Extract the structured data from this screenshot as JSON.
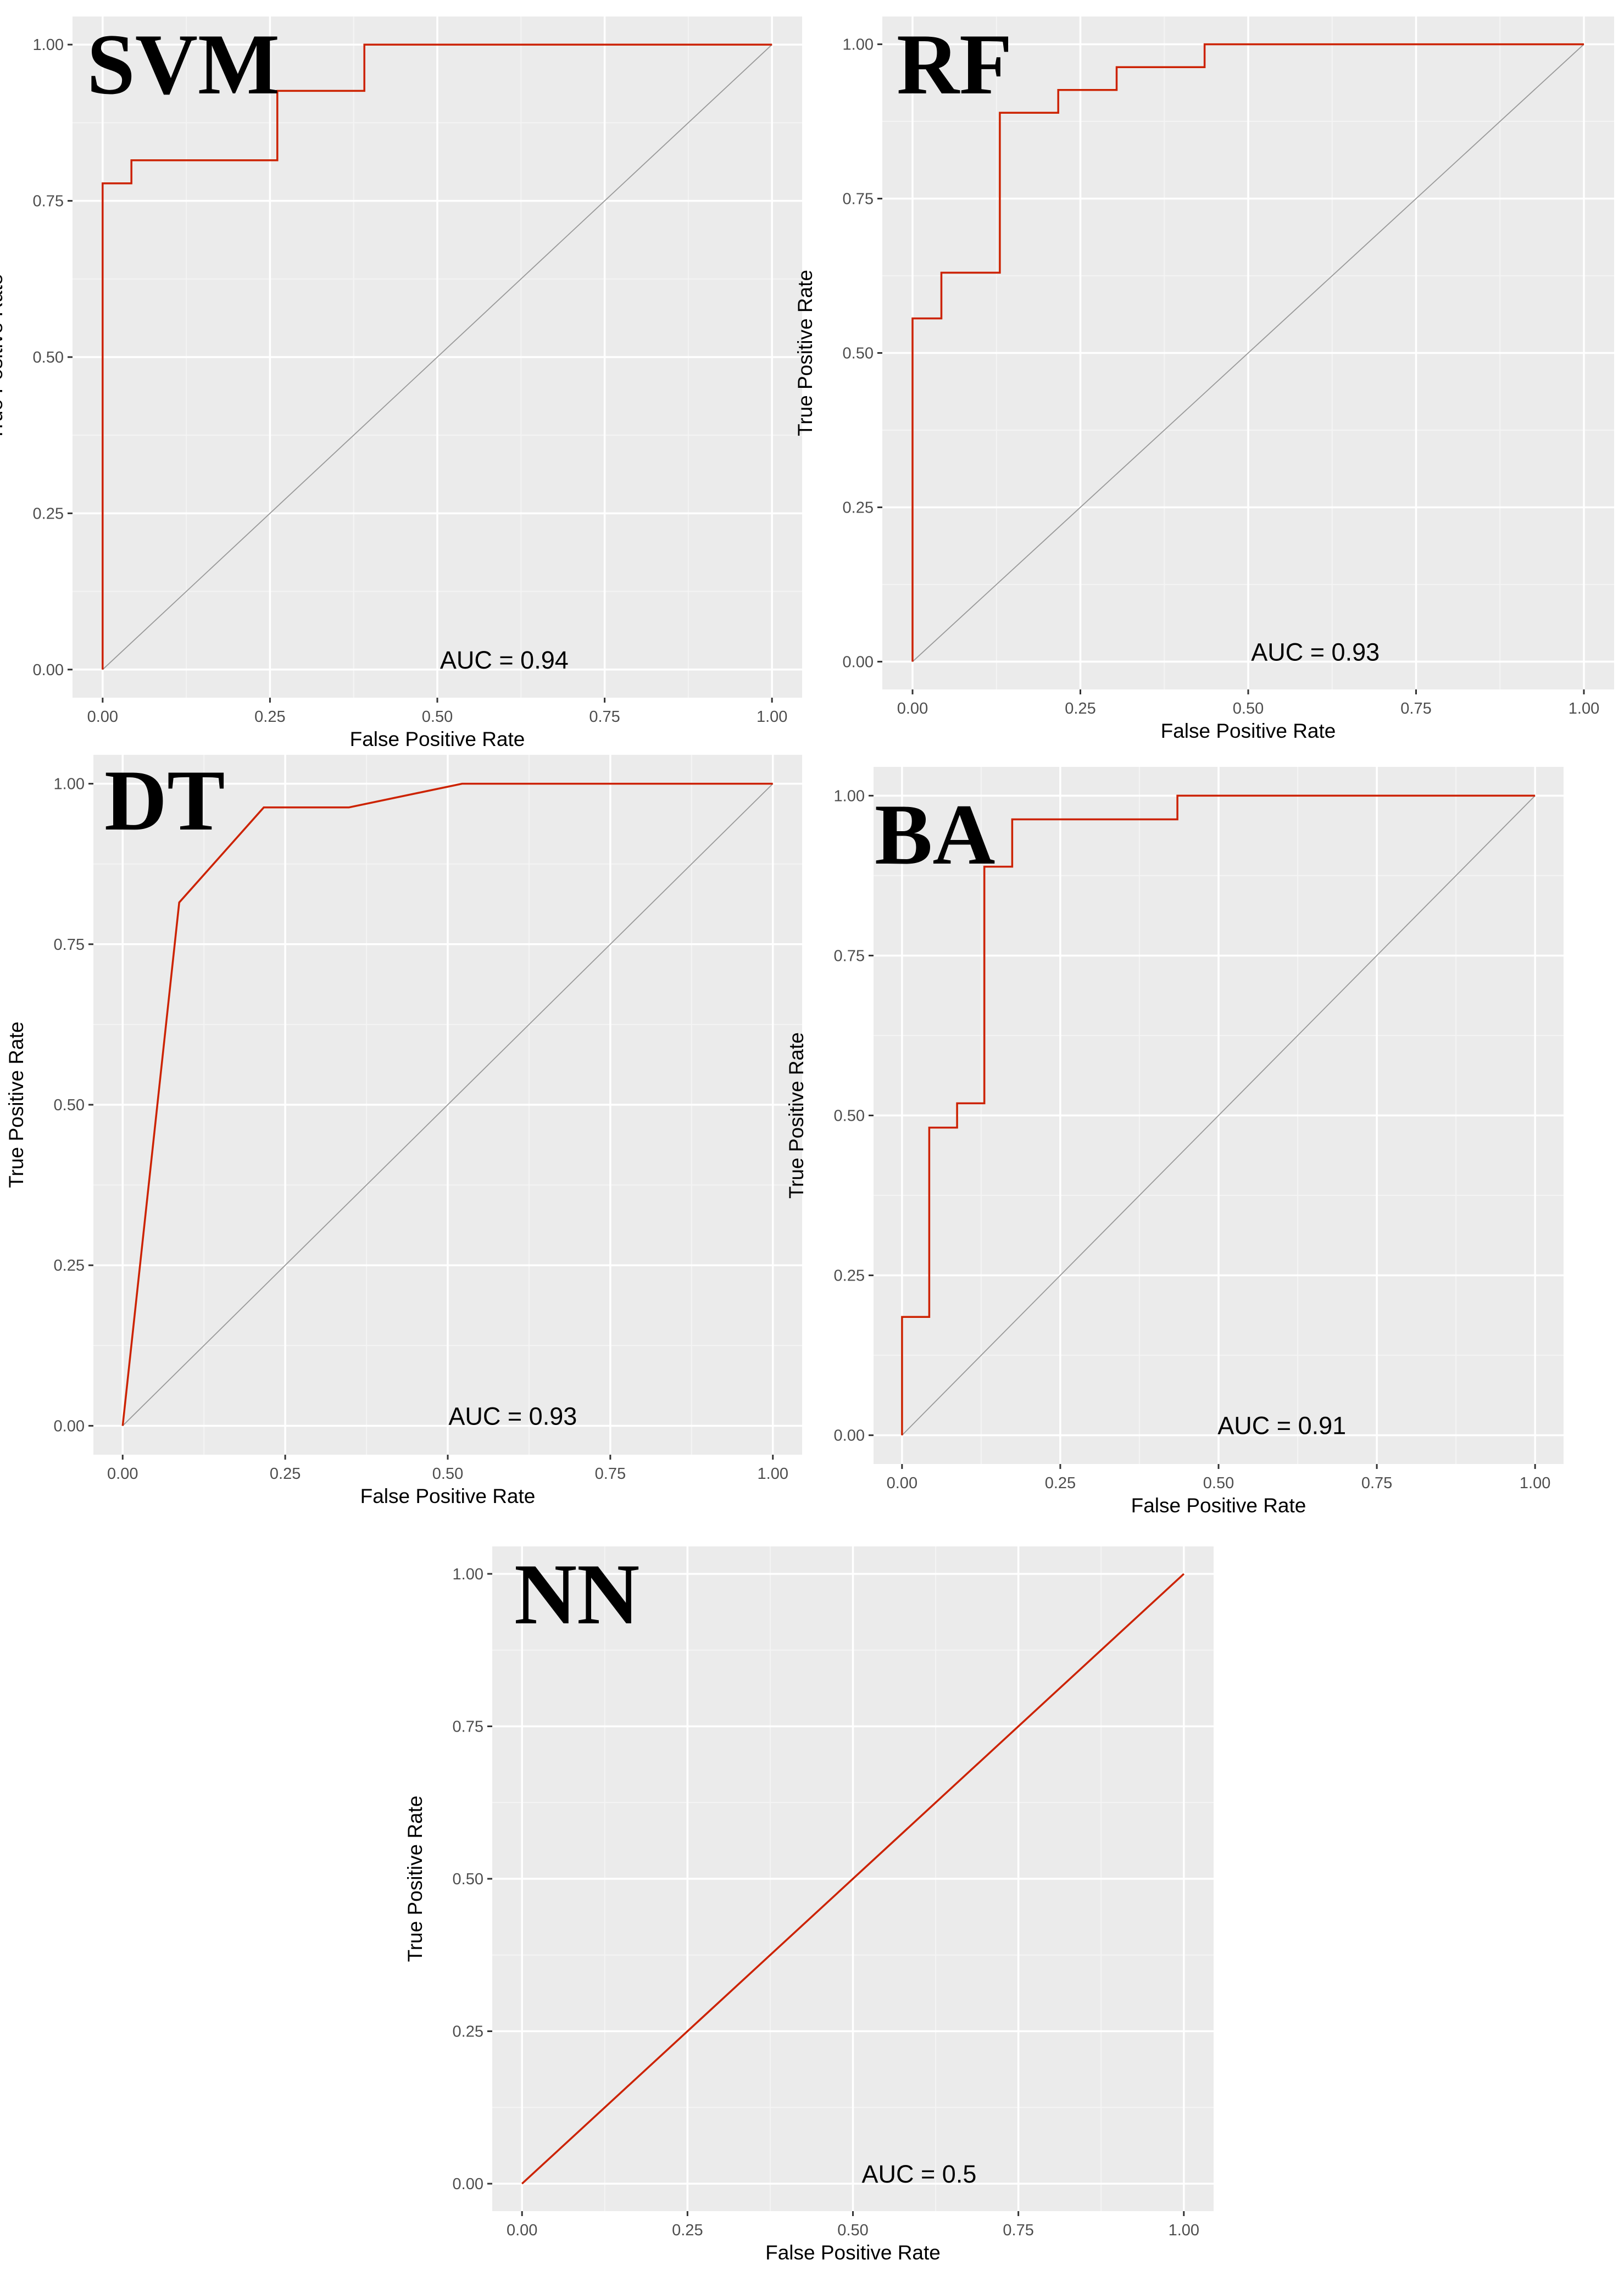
{
  "figure": {
    "background": "#ffffff"
  },
  "style": {
    "panel_bg": "#ebebeb",
    "grid_major": "#ffffff",
    "grid_minor": "#f4f4f4",
    "roc_color": "#cc2200",
    "diagonal_color": "#999999",
    "tick_color": "#333333"
  },
  "chart_data": [
    {
      "id": "svm",
      "type": "line",
      "panel_label": "SVM",
      "xlabel": "False Positive Rate",
      "ylabel": "True Positive Rate",
      "xlim": [
        0,
        1
      ],
      "ylim": [
        0,
        1
      ],
      "grid": true,
      "x_ticks": [
        "0.00",
        "0.25",
        "0.50",
        "0.75",
        "1.00"
      ],
      "y_ticks": [
        "0.00",
        "0.25",
        "0.50",
        "0.75",
        "1.00"
      ],
      "annotation": "AUC = 0.94",
      "auc": 0.94,
      "roc_curve": {
        "x": [
          0,
          0,
          0.043,
          0.043,
          0.261,
          0.261,
          0.391,
          0.391,
          1.0
        ],
        "y": [
          0,
          0.778,
          0.778,
          0.815,
          0.815,
          0.926,
          0.926,
          1.0,
          1.0
        ]
      },
      "diagonal": {
        "x": [
          0,
          1
        ],
        "y": [
          0,
          1
        ]
      }
    },
    {
      "id": "rf",
      "type": "line",
      "panel_label": "RF",
      "xlabel": "False Positive Rate",
      "ylabel": "True Positive Rate",
      "xlim": [
        0,
        1
      ],
      "ylim": [
        0,
        1
      ],
      "grid": true,
      "x_ticks": [
        "0.00",
        "0.25",
        "0.50",
        "0.75",
        "1.00"
      ],
      "y_ticks": [
        "0.00",
        "0.25",
        "0.50",
        "0.75",
        "1.00"
      ],
      "annotation": "AUC = 0.93",
      "auc": 0.93,
      "roc_curve": {
        "x": [
          0,
          0,
          0.043,
          0.043,
          0.13,
          0.13,
          0.217,
          0.217,
          0.304,
          0.304,
          0.435,
          0.435,
          1.0
        ],
        "y": [
          0,
          0.556,
          0.556,
          0.63,
          0.63,
          0.889,
          0.889,
          0.926,
          0.926,
          0.963,
          0.963,
          1.0,
          1.0
        ]
      },
      "diagonal": {
        "x": [
          0,
          1
        ],
        "y": [
          0,
          1
        ]
      }
    },
    {
      "id": "dt",
      "type": "line",
      "panel_label": "DT",
      "xlabel": "False Positive Rate",
      "ylabel": "True Positive Rate",
      "xlim": [
        0,
        1
      ],
      "ylim": [
        0,
        1
      ],
      "grid": true,
      "x_ticks": [
        "0.00",
        "0.25",
        "0.50",
        "0.75",
        "1.00"
      ],
      "y_ticks": [
        "0.00",
        "0.25",
        "0.50",
        "0.75",
        "1.00"
      ],
      "annotation": "AUC = 0.93",
      "auc": 0.93,
      "roc_curve": {
        "x": [
          0,
          0.087,
          0.217,
          0.348,
          0.522,
          1.0
        ],
        "y": [
          0,
          0.815,
          0.963,
          0.963,
          1.0,
          1.0
        ]
      },
      "diagonal": {
        "x": [
          0,
          1
        ],
        "y": [
          0,
          1
        ]
      }
    },
    {
      "id": "ba",
      "type": "line",
      "panel_label": "BA",
      "xlabel": "False Positive Rate",
      "ylabel": "True Positive Rate",
      "xlim": [
        0,
        1
      ],
      "ylim": [
        0,
        1
      ],
      "grid": true,
      "x_ticks": [
        "0.00",
        "0.25",
        "0.50",
        "0.75",
        "1.00"
      ],
      "y_ticks": [
        "0.00",
        "0.25",
        "0.50",
        "0.75",
        "1.00"
      ],
      "annotation": "AUC = 0.91",
      "auc": 0.91,
      "roc_curve": {
        "x": [
          0,
          0,
          0.043,
          0.043,
          0.087,
          0.087,
          0.13,
          0.13,
          0.174,
          0.174,
          0.435,
          0.435,
          1.0
        ],
        "y": [
          0,
          0.185,
          0.185,
          0.481,
          0.481,
          0.519,
          0.519,
          0.889,
          0.889,
          0.963,
          0.963,
          1.0,
          1.0
        ]
      },
      "diagonal": {
        "x": [
          0,
          1
        ],
        "y": [
          0,
          1
        ]
      }
    },
    {
      "id": "nn",
      "type": "line",
      "panel_label": "NN",
      "xlabel": "False Positive Rate",
      "ylabel": "True Positive Rate",
      "xlim": [
        0,
        1
      ],
      "ylim": [
        0,
        1
      ],
      "grid": true,
      "x_ticks": [
        "0.00",
        "0.25",
        "0.50",
        "0.75",
        "1.00"
      ],
      "y_ticks": [
        "0.00",
        "0.25",
        "0.50",
        "0.75",
        "1.00"
      ],
      "annotation": "AUC = 0.5",
      "auc": 0.5,
      "roc_curve": {
        "x": [
          0,
          1
        ],
        "y": [
          0,
          1
        ]
      },
      "diagonal": {
        "x": [
          0,
          1
        ],
        "y": [
          0,
          1
        ]
      }
    }
  ]
}
